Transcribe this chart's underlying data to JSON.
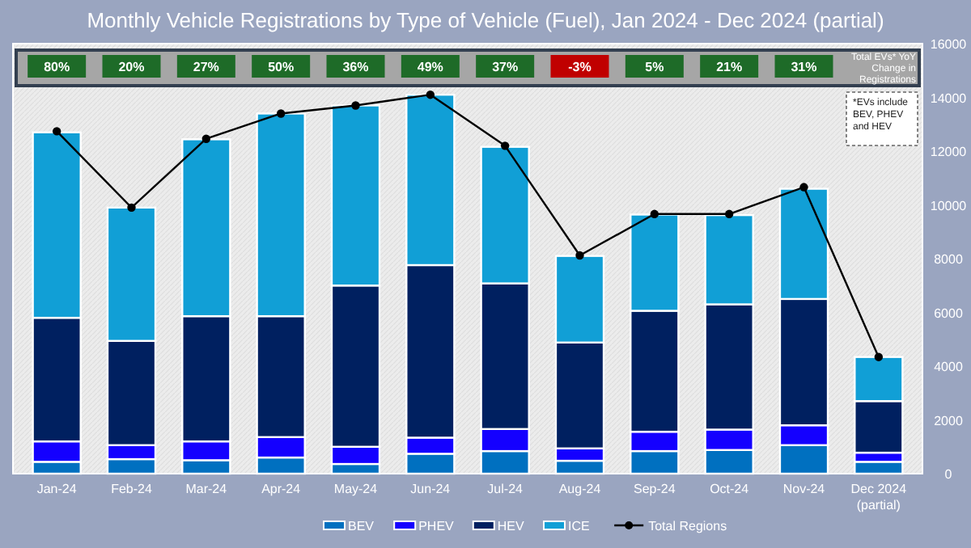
{
  "chart_data": {
    "type": "bar",
    "title": "Monthly Vehicle Registrations by Type of Vehicle (Fuel), Jan 2024 - Dec 2024 (partial)",
    "categories": [
      "Jan-24",
      "Feb-24",
      "Mar-24",
      "Apr-24",
      "May-24",
      "Jun-24",
      "Jul-24",
      "Aug-24",
      "Sep-24",
      "Oct-24",
      "Nov-24",
      "Dec 2024\n(partial)"
    ],
    "stacked": true,
    "series": [
      {
        "name": "BEV",
        "color": "#0070c0",
        "values": [
          440,
          540,
          500,
          600,
          360,
          740,
          840,
          480,
          840,
          880,
          1060,
          440
        ]
      },
      {
        "name": "PHEV",
        "color": "#1400ff",
        "values": [
          760,
          520,
          700,
          760,
          640,
          600,
          820,
          460,
          720,
          760,
          740,
          340
        ]
      },
      {
        "name": "HEV",
        "color": "#002060",
        "values": [
          4600,
          3880,
          4660,
          4500,
          6000,
          6420,
          5420,
          3940,
          4500,
          4660,
          4700,
          1920
        ]
      },
      {
        "name": "ICE",
        "color": "#119fd6",
        "values": [
          6900,
          4960,
          6580,
          7540,
          6700,
          6340,
          5080,
          3220,
          3580,
          3320,
          4100,
          1640
        ]
      },
      {
        "name": "Total Regions",
        "type": "line",
        "color": "#000000",
        "marker": "circle",
        "values": [
          12740,
          9900,
          12460,
          13400,
          13700,
          14100,
          12200,
          8120,
          9660,
          9660,
          10660,
          4340
        ]
      }
    ],
    "ylim": [
      0,
      16000
    ],
    "yticks": [
      0,
      2000,
      4000,
      6000,
      8000,
      10000,
      12000,
      14000,
      16000
    ],
    "legend": "bottom",
    "annotations": [
      "80%",
      "20%",
      "27%",
      "50%",
      "36%",
      "49%",
      "37%",
      "-3%",
      "5%",
      "21%",
      "31%",
      "Total EVs* YoY Change in Registrations",
      "*EVs include BEV, PHEV and HEV"
    ]
  }
}
